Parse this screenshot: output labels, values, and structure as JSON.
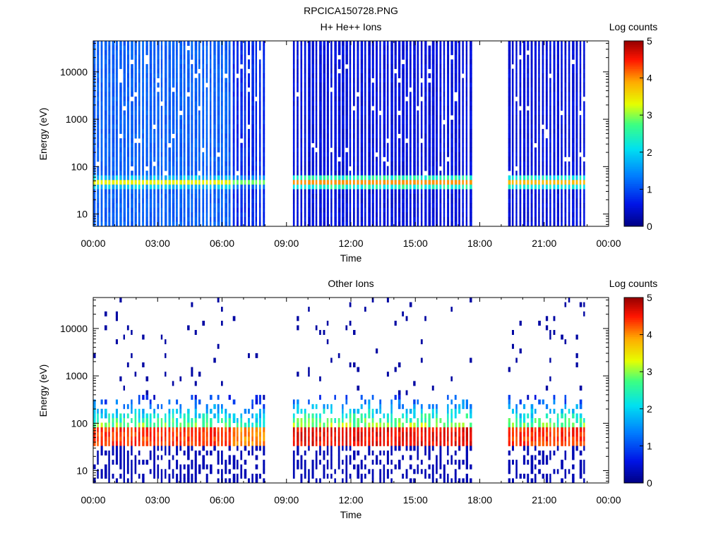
{
  "figure_title": "RPCICA150728.PNG",
  "chart_data": [
    {
      "type": "heatmap",
      "title": "H+ He++ Ions",
      "xlabel": "Time",
      "ylabel": "Energy (eV)",
      "x_ticks": [
        "00:00",
        "03:00",
        "06:00",
        "09:00",
        "12:00",
        "15:00",
        "18:00",
        "21:00",
        "00:00"
      ],
      "x_range_hours": [
        0,
        24
      ],
      "y_scale": "log",
      "y_ticks": [
        "10",
        "100",
        "1000",
        "10000"
      ],
      "y_range": [
        5.5,
        45000
      ],
      "colorbar": {
        "label": "Log counts",
        "range": [
          0,
          5
        ],
        "ticks": [
          "0",
          "1",
          "2",
          "3",
          "4",
          "5"
        ],
        "colormap": "rainbow"
      },
      "data_gaps_hours": [
        [
          8.12,
          9.3
        ],
        [
          17.72,
          19.32
        ],
        [
          22.9,
          24
        ]
      ],
      "measurement_regions": [
        {
          "hours": [
            0.0,
            6.5
          ],
          "background_log_counts": 1.0,
          "peak_energy_eV": 48,
          "peak_log_counts": 3.4
        },
        {
          "hours": [
            6.5,
            8.12
          ],
          "background_log_counts": 0.6,
          "peak_energy_eV": 48,
          "peak_log_counts": 2.9
        },
        {
          "hours": [
            9.3,
            17.72
          ],
          "background_log_counts": 0.4,
          "peak_energy_eV": 48,
          "peak_log_counts": 4.0
        },
        {
          "hours": [
            19.32,
            22.9
          ],
          "background_log_counts": 0.4,
          "peak_energy_eV": 48,
          "peak_log_counts": 3.8
        }
      ]
    },
    {
      "type": "heatmap",
      "title": "Other Ions",
      "xlabel": "Time",
      "ylabel": "Energy (eV)",
      "x_ticks": [
        "00:00",
        "03:00",
        "06:00",
        "09:00",
        "12:00",
        "15:00",
        "18:00",
        "21:00",
        "00:00"
      ],
      "x_range_hours": [
        0,
        24
      ],
      "y_scale": "log",
      "y_ticks": [
        "10",
        "100",
        "1000",
        "10000"
      ],
      "y_range": [
        5.5,
        45000
      ],
      "colorbar": {
        "label": "Log counts",
        "range": [
          0,
          5
        ],
        "ticks": [
          "0",
          "1",
          "2",
          "3",
          "4",
          "5"
        ],
        "colormap": "rainbow"
      },
      "data_gaps_hours": [
        [
          8.12,
          9.3
        ],
        [
          17.72,
          19.32
        ],
        [
          22.9,
          24
        ]
      ],
      "measurement_regions": [
        {
          "hours": [
            0.0,
            6.5
          ],
          "background_log_counts": 0.0,
          "peak_energy_eV": 48,
          "peak_log_counts": 4.6
        },
        {
          "hours": [
            6.5,
            8.12
          ],
          "background_log_counts": 0.0,
          "peak_energy_eV": 48,
          "peak_log_counts": 4.2
        },
        {
          "hours": [
            9.3,
            17.72
          ],
          "background_log_counts": 0.0,
          "peak_energy_eV": 48,
          "peak_log_counts": 4.8
        },
        {
          "hours": [
            19.32,
            22.9
          ],
          "background_log_counts": 0.0,
          "peak_energy_eV": 48,
          "peak_log_counts": 4.6
        }
      ]
    }
  ]
}
